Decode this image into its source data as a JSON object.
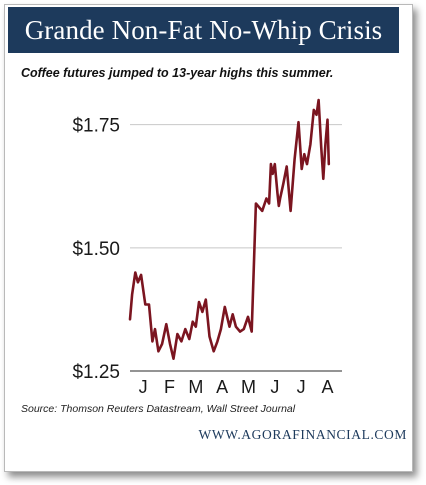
{
  "header": {
    "title": "Grande Non-Fat No-Whip Crisis",
    "subtitle": "Coffee futures jumped to 13-year highs this summer."
  },
  "footer": {
    "source": "Source: Thomson Reuters Datastream, Wall Street Journal",
    "website": "WWW.AGORAFINANCIAL.COM"
  },
  "colors": {
    "title_bar": "#1d3a5c",
    "line": "#7b1520",
    "grid": "#c8c8c8"
  },
  "chart_data": {
    "type": "line",
    "title": "Grande Non-Fat No-Whip Crisis",
    "subtitle": "Coffee futures jumped to 13-year highs this summer.",
    "xlabel": "",
    "ylabel": "",
    "ylim": [
      1.25,
      1.8
    ],
    "yticks": [
      1.25,
      1.5,
      1.75
    ],
    "ytick_labels": [
      "$1.25",
      "$1.50",
      "$1.75"
    ],
    "xlim": [
      0,
      8.05
    ],
    "xticks": [
      0.5,
      1.5,
      2.5,
      3.5,
      4.5,
      5.5,
      6.5,
      7.5
    ],
    "xtick_labels": [
      "J",
      "F",
      "M",
      "A",
      "M",
      "J",
      "J",
      "A"
    ],
    "grid": "horizontal",
    "legend": "none",
    "series": [
      {
        "x": [
          0,
          0.08,
          0.2,
          0.3,
          0.42,
          0.58,
          0.72,
          0.85,
          0.95,
          1.08,
          1.22,
          1.38,
          1.52,
          1.65,
          1.8,
          1.95,
          2.1,
          2.25,
          2.38,
          2.5,
          2.62,
          2.75,
          2.88,
          3.02,
          3.18,
          3.32,
          3.45,
          3.6,
          3.78,
          3.9,
          4.02,
          4.18,
          4.32,
          4.48,
          4.62,
          4.78,
          5.02,
          5.18,
          5.28,
          5.35,
          5.42,
          5.5,
          5.6,
          5.65,
          5.7,
          5.82,
          5.95,
          6.1,
          6.25,
          6.4,
          6.52,
          6.62,
          6.72,
          6.85,
          6.98,
          7.08,
          7.16,
          7.26,
          7.34,
          7.42,
          7.5,
          7.55
        ],
        "values": [
          1.355,
          1.405,
          1.45,
          1.43,
          1.445,
          1.385,
          1.385,
          1.31,
          1.335,
          1.29,
          1.305,
          1.345,
          1.305,
          1.275,
          1.325,
          1.31,
          1.335,
          1.315,
          1.35,
          1.34,
          1.39,
          1.37,
          1.395,
          1.32,
          1.29,
          1.31,
          1.335,
          1.38,
          1.34,
          1.365,
          1.34,
          1.33,
          1.335,
          1.36,
          1.33,
          1.59,
          1.575,
          1.6,
          1.59,
          1.67,
          1.65,
          1.67,
          1.61,
          1.585,
          1.6,
          1.63,
          1.665,
          1.575,
          1.68,
          1.755,
          1.66,
          1.69,
          1.67,
          1.71,
          1.78,
          1.77,
          1.8,
          1.705,
          1.64,
          1.71,
          1.76,
          1.67
        ]
      }
    ]
  }
}
